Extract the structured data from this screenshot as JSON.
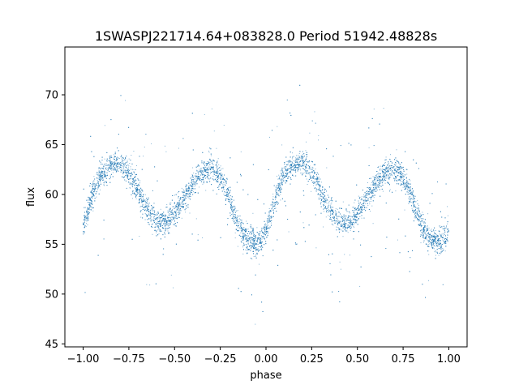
{
  "chart_data": {
    "type": "scatter",
    "title": "1SWASPJ221714.64+083828.0 Period 51942.48828s",
    "xlabel": "phase",
    "ylabel": "flux",
    "xlim": [
      -1.1,
      1.1
    ],
    "ylim": [
      44.7,
      74.8
    ],
    "x_ticks": [
      -1.0,
      -0.75,
      -0.5,
      -0.25,
      0.0,
      0.25,
      0.5,
      0.75,
      1.0
    ],
    "x_tick_labels": [
      "−1.00",
      "−0.75",
      "−0.50",
      "−0.25",
      "0.00",
      "0.25",
      "0.50",
      "0.75",
      "1.00"
    ],
    "y_ticks": [
      45,
      50,
      55,
      60,
      65,
      70
    ],
    "y_tick_labels": [
      "45",
      "50",
      "55",
      "60",
      "65",
      "70"
    ],
    "grid": false,
    "legend": "none",
    "marker_color": "#1f77b4",
    "series": [
      {
        "description": "folded light curve main band (phase, flux)",
        "x": [
          -1.0,
          -0.95,
          -0.9,
          -0.85,
          -0.8,
          -0.75,
          -0.7,
          -0.65,
          -0.6,
          -0.55,
          -0.5,
          -0.45,
          -0.4,
          -0.35,
          -0.3,
          -0.25,
          -0.2,
          -0.15,
          -0.1,
          -0.05,
          0.0,
          0.05,
          0.1,
          0.15,
          0.2,
          0.25,
          0.3,
          0.35,
          0.4,
          0.45,
          0.5,
          0.55,
          0.6,
          0.65,
          0.7,
          0.75,
          0.8,
          0.85,
          0.9,
          0.95,
          1.0
        ],
        "y": [
          56.5,
          60.0,
          62.0,
          63.0,
          63.2,
          62.2,
          60.3,
          58.5,
          57.2,
          57.1,
          58.0,
          59.5,
          61.0,
          62.2,
          62.5,
          61.8,
          59.5,
          56.8,
          55.5,
          55.1,
          56.2,
          59.5,
          62.0,
          63.0,
          63.2,
          62.2,
          60.3,
          58.5,
          57.2,
          57.1,
          58.0,
          59.5,
          61.0,
          62.2,
          62.5,
          61.8,
          59.5,
          56.8,
          55.5,
          55.1,
          56.2
        ]
      }
    ],
    "scatter_density": {
      "band_width_flux": 1.4,
      "points_per_unit_phase": 4500,
      "outlier_fraction": 0.05,
      "outlier_flux_range": [
        46,
        73.5
      ]
    }
  }
}
